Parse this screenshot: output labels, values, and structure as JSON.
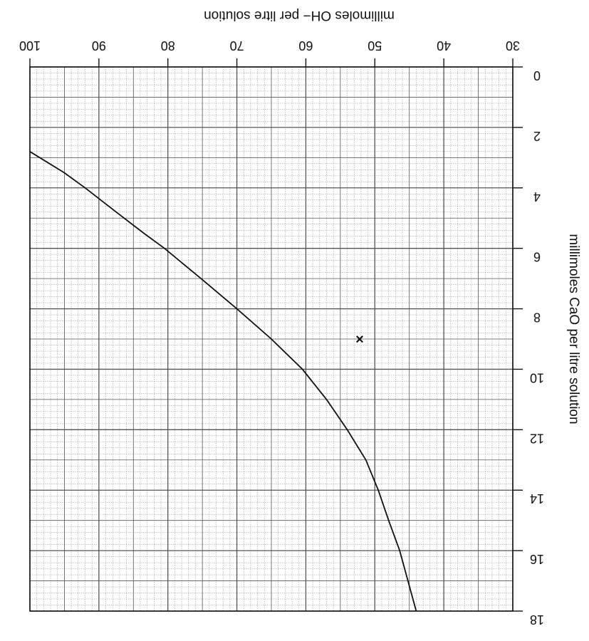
{
  "chart_data": {
    "type": "line",
    "xlabel": "millimoles CaO per litre solution",
    "ylabel": "millimoles OH− per litre solution",
    "x_ticks": [
      "0",
      "2",
      "4",
      "6",
      "8",
      "10",
      "12",
      "14",
      "16",
      "18"
    ],
    "y_ticks": [
      "30",
      "40",
      "50",
      "60",
      "70",
      "80",
      "90",
      "100"
    ],
    "xlim": [
      0,
      18
    ],
    "ylim": [
      30,
      100
    ],
    "orientation": "rotated 180 degrees (upside down)",
    "grid": true,
    "series": [
      {
        "x": [
          2.8,
          3.5,
          4.0,
          4.8,
          5.5,
          6.0,
          7.0,
          8.0,
          9.0,
          10.0,
          11.0,
          12.0,
          13.0,
          14.0,
          15.0,
          16.0,
          17.0,
          18.0
        ],
        "y": [
          100,
          95,
          92,
          87.5,
          83.5,
          80.5,
          75.2,
          70,
          65,
          60.5,
          57,
          54,
          51.3,
          49.5,
          48,
          46.4,
          45.2,
          44
        ]
      }
    ],
    "markers": [
      {
        "symbol": "×",
        "x": 9.0,
        "y": 52.2
      }
    ],
    "colors": {
      "line": "#111111",
      "grid": "#555555",
      "background": "#ffffff"
    }
  }
}
